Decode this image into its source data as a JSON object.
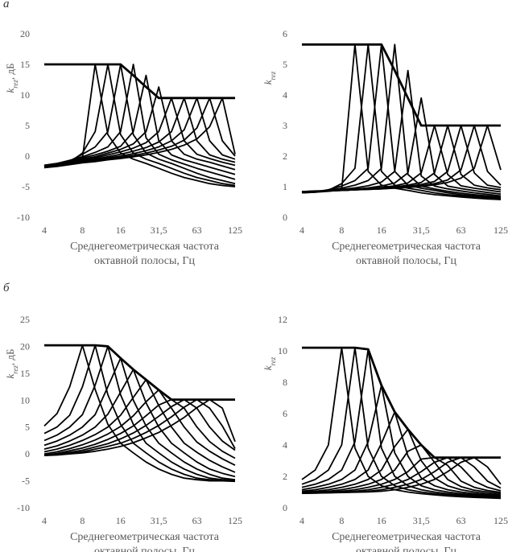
{
  "panels": {
    "a": "а",
    "b": "б"
  },
  "chart_data": [
    {
      "id": "a-left",
      "type": "line",
      "ylabel": "krez, дБ",
      "ylabel_main": "k",
      "ylabel_sub": "rez",
      "ylabel_unit": ", дБ",
      "xlabel_line1": "Среднегеометрическая частота",
      "xlabel_line2": "октавной полосы, Гц",
      "xtick_labels": [
        "4",
        "8",
        "16",
        "31,5",
        "63",
        "125"
      ],
      "xlim": [
        0,
        15
      ],
      "ylim": [
        -10,
        20
      ],
      "yticks": [
        -10,
        -5,
        0,
        5,
        10,
        15,
        20
      ],
      "ytick_labels": [
        "-10",
        "-5",
        "0",
        "5",
        "10",
        "15",
        "20"
      ],
      "envelope": [
        15,
        15,
        15,
        15,
        15,
        15,
        15,
        13.2,
        11.3,
        9.5,
        9.5,
        9.5,
        9.5,
        9.5,
        9.5,
        9.5
      ],
      "peaks": [
        3,
        4,
        5,
        6,
        7,
        8,
        9,
        10,
        11,
        12,
        13
      ],
      "curves": [
        [
          -1.8,
          -1.5,
          -1,
          -0.3,
          15,
          3.5,
          0.5,
          -0.5,
          -1.2,
          -2,
          -2.8,
          -3.5,
          -4,
          -4.5,
          -4.8,
          -5
        ],
        [
          -1.8,
          -1.5,
          -1,
          0.5,
          4,
          15,
          3.5,
          0.5,
          -0.5,
          -1.2,
          -2,
          -2.8,
          -3.5,
          -4,
          -4.5,
          -4.8
        ],
        [
          -1.6,
          -1.4,
          -0.8,
          0.3,
          1.5,
          4,
          15,
          3.5,
          0.5,
          -0.5,
          -1.2,
          -2,
          -2.8,
          -3.5,
          -4,
          -4.5
        ],
        [
          -1.5,
          -1.2,
          -0.7,
          -0.1,
          0.6,
          1.5,
          4,
          15,
          3,
          0.3,
          -0.6,
          -1.3,
          -2,
          -2.6,
          -3.2,
          -3.8
        ],
        [
          -1.5,
          -1.2,
          -0.8,
          -0.3,
          0.2,
          0.8,
          1.6,
          4,
          13.2,
          2.5,
          0.2,
          -0.6,
          -1.2,
          -1.8,
          -2.4,
          -3
        ],
        [
          -1.6,
          -1.3,
          -0.9,
          -0.5,
          -0.1,
          0.5,
          1.1,
          2,
          4,
          11.3,
          2.5,
          0.3,
          -0.5,
          -1,
          -1.6,
          -2.2
        ],
        [
          -1.6,
          -1.4,
          -1,
          -0.7,
          -0.3,
          0.2,
          0.7,
          1.3,
          2.2,
          4,
          9.5,
          2.5,
          0.3,
          -0.4,
          -1,
          -1.5
        ],
        [
          -1.7,
          -1.4,
          -1.1,
          -0.8,
          -0.5,
          -0.1,
          0.3,
          0.8,
          1.4,
          2.3,
          4,
          9.5,
          2.5,
          0.2,
          -0.5,
          -1
        ],
        [
          -1.8,
          -1.5,
          -1.2,
          -0.9,
          -0.6,
          -0.3,
          0,
          0.4,
          0.9,
          1.5,
          2.5,
          4.3,
          9.5,
          2.5,
          0.2,
          -0.5
        ],
        [
          -1.9,
          -1.6,
          -1.3,
          -1,
          -0.8,
          -0.5,
          -0.2,
          0.1,
          0.5,
          1,
          1.6,
          2.6,
          4.6,
          9.5,
          2.5,
          0
        ],
        [
          -1.9,
          -1.7,
          -1.4,
          -1.1,
          -0.9,
          -0.6,
          -0.4,
          -0.1,
          0.2,
          0.6,
          1.1,
          1.8,
          2.8,
          4.8,
          9.5,
          0.3
        ]
      ]
    },
    {
      "id": "a-right",
      "type": "line",
      "ylabel": "krez",
      "ylabel_main": "k",
      "ylabel_sub": "rez",
      "ylabel_unit": "",
      "xlabel_line1": "Среднегеометрическая частота",
      "xlabel_line2": "октавной полосы, Гц",
      "xtick_labels": [
        "4",
        "8",
        "16",
        "31,5",
        "63",
        "125"
      ],
      "xlim": [
        0,
        15
      ],
      "ylim": [
        0,
        6
      ],
      "yticks": [
        0,
        1,
        2,
        3,
        4,
        5,
        6
      ],
      "ytick_labels": [
        "0",
        "1",
        "2",
        "3",
        "4",
        "5",
        "6"
      ],
      "envelope": [
        5.65,
        5.65,
        5.65,
        5.65,
        5.65,
        5.65,
        5.65,
        4.8,
        3.9,
        3,
        3,
        3,
        3,
        3,
        3,
        3
      ],
      "peaks": [
        3,
        4,
        5,
        6,
        7,
        8,
        9,
        10,
        11,
        12,
        13
      ],
      "curves": [
        [
          0.8,
          0.82,
          0.85,
          0.9,
          5.65,
          1.5,
          1.05,
          0.95,
          0.88,
          0.8,
          0.74,
          0.7,
          0.66,
          0.63,
          0.6,
          0.58
        ],
        [
          0.8,
          0.82,
          0.88,
          1.1,
          1.6,
          5.65,
          1.5,
          1.05,
          0.95,
          0.88,
          0.8,
          0.74,
          0.7,
          0.66,
          0.63,
          0.6
        ],
        [
          0.8,
          0.83,
          0.9,
          1.02,
          1.2,
          1.6,
          5.65,
          1.5,
          1.05,
          0.95,
          0.88,
          0.8,
          0.74,
          0.7,
          0.66,
          0.63
        ],
        [
          0.8,
          0.83,
          0.88,
          0.95,
          1.05,
          1.2,
          1.6,
          5.65,
          1.4,
          1.02,
          0.93,
          0.85,
          0.79,
          0.74,
          0.7,
          0.66
        ],
        [
          0.82,
          0.84,
          0.87,
          0.91,
          0.96,
          1.03,
          1.15,
          1.5,
          4.8,
          1.35,
          1.02,
          0.93,
          0.86,
          0.8,
          0.75,
          0.7
        ],
        [
          0.82,
          0.84,
          0.86,
          0.89,
          0.92,
          0.96,
          1.02,
          1.12,
          1.45,
          3.9,
          1.4,
          1.02,
          0.94,
          0.87,
          0.81,
          0.76
        ],
        [
          0.83,
          0.84,
          0.86,
          0.88,
          0.9,
          0.93,
          0.97,
          1.03,
          1.12,
          1.45,
          3,
          1.4,
          1.03,
          0.95,
          0.89,
          0.83
        ],
        [
          0.83,
          0.85,
          0.86,
          0.88,
          0.9,
          0.92,
          0.95,
          0.99,
          1.05,
          1.14,
          1.45,
          3,
          1.4,
          1.05,
          0.96,
          0.9
        ],
        [
          0.84,
          0.85,
          0.87,
          0.88,
          0.9,
          0.92,
          0.94,
          0.97,
          1.01,
          1.07,
          1.17,
          1.5,
          3,
          1.45,
          1.05,
          0.97
        ],
        [
          0.84,
          0.85,
          0.87,
          0.88,
          0.9,
          0.91,
          0.93,
          0.96,
          0.99,
          1.03,
          1.1,
          1.22,
          1.55,
          3,
          1.5,
          1.05
        ],
        [
          0.84,
          0.86,
          0.87,
          0.88,
          0.9,
          0.91,
          0.93,
          0.95,
          0.97,
          1.01,
          1.06,
          1.14,
          1.28,
          1.6,
          3,
          1.55
        ]
      ]
    },
    {
      "id": "b-left",
      "type": "line",
      "ylabel": "krez, дБ",
      "ylabel_main": "k",
      "ylabel_sub": "rez",
      "ylabel_unit": ", дБ",
      "xlabel_line1": "Среднегеометрическая частота",
      "xlabel_line2": "октавной полосы, Гц",
      "xtick_labels": [
        "4",
        "8",
        "16",
        "31,5",
        "63",
        "125"
      ],
      "xlim": [
        0,
        15
      ],
      "ylim": [
        -10,
        25
      ],
      "yticks": [
        -10,
        -5,
        0,
        5,
        10,
        15,
        20,
        25
      ],
      "ytick_labels": [
        "-10",
        "-5",
        "0",
        "5",
        "10",
        "15",
        "20",
        "25"
      ],
      "envelope": [
        20.2,
        20.2,
        20.2,
        20.2,
        20.2,
        20,
        17.8,
        15.7,
        13.8,
        11.9,
        10.1,
        10.1,
        10.1,
        10.1,
        10.1,
        10.1
      ],
      "peaks": [
        3,
        4,
        5,
        6,
        7,
        8,
        9,
        10,
        11,
        12,
        13
      ],
      "curves": [
        [
          5.2,
          7.5,
          12.5,
          20.2,
          12,
          5.5,
          2,
          0.2,
          -1.5,
          -2.8,
          -3.8,
          -4.5,
          -4.8,
          -5,
          -5,
          -5.1
        ],
        [
          3.8,
          5,
          7.2,
          12.5,
          20.2,
          11,
          5.5,
          2,
          0.2,
          -1.5,
          -2.8,
          -3.8,
          -4.5,
          -4.8,
          -5,
          -5
        ],
        [
          2.5,
          3.5,
          5,
          7.3,
          12.8,
          20,
          11,
          5.5,
          2,
          0.2,
          -1.5,
          -2.8,
          -3.8,
          -4.5,
          -4.8,
          -5
        ],
        [
          1.6,
          2.4,
          3.5,
          5,
          7.3,
          12.5,
          17.8,
          10,
          5.2,
          2,
          0.2,
          -1.5,
          -2.8,
          -3.8,
          -4.5,
          -4.8
        ],
        [
          0.9,
          1.5,
          2.4,
          3.5,
          5,
          7.4,
          11.5,
          15.7,
          9.5,
          5,
          2,
          0.2,
          -1.5,
          -2.8,
          -3.6,
          -4.2
        ],
        [
          0.4,
          0.9,
          1.6,
          2.5,
          3.6,
          5,
          7.2,
          10.5,
          13.8,
          9,
          5,
          2,
          0.3,
          -1.2,
          -2.4,
          -3.4
        ],
        [
          0,
          0.4,
          1,
          1.7,
          2.6,
          3.7,
          5.1,
          7.1,
          9.7,
          11.9,
          8.5,
          5,
          2.2,
          0.5,
          -0.9,
          -2.1
        ],
        [
          -0.2,
          0.1,
          0.6,
          1.1,
          1.8,
          2.7,
          3.8,
          5.2,
          7.1,
          9.1,
          10.1,
          8.5,
          5,
          2.3,
          0.5,
          -0.8
        ],
        [
          -0.3,
          0,
          0.3,
          0.7,
          1.3,
          1.9,
          2.8,
          3.9,
          5.3,
          7,
          8.8,
          10.1,
          8.5,
          5,
          2.4,
          0.7
        ],
        [
          -0.3,
          -0.1,
          0.1,
          0.4,
          0.9,
          1.4,
          2,
          2.9,
          4,
          5.3,
          6.9,
          8.7,
          10.1,
          8.5,
          5.2,
          1
        ],
        [
          -0.3,
          -0.2,
          0,
          0.2,
          0.5,
          0.9,
          1.4,
          2.1,
          3,
          4,
          5.3,
          6.8,
          8.6,
          10.1,
          8.5,
          2.3
        ]
      ]
    },
    {
      "id": "b-right",
      "type": "line",
      "ylabel": "krez",
      "ylabel_main": "k",
      "ylabel_sub": "rez",
      "ylabel_unit": "",
      "xlabel_line1": "Среднегеометрическая частота",
      "xlabel_line2": "октавной полосы, Гц",
      "xtick_labels": [
        "4",
        "8",
        "16",
        "31,5",
        "63",
        "125"
      ],
      "xlim": [
        0,
        15
      ],
      "ylim": [
        0,
        12
      ],
      "yticks": [
        0,
        2,
        4,
        6,
        8,
        10,
        12
      ],
      "ytick_labels": [
        "0",
        "2",
        "4",
        "6",
        "8",
        "10",
        "12"
      ],
      "envelope": [
        10.2,
        10.2,
        10.2,
        10.2,
        10.2,
        10.1,
        7.8,
        6.1,
        5,
        4,
        3.2,
        3.2,
        3.2,
        3.2,
        3.2,
        3.2
      ],
      "peaks": [
        3,
        4,
        5,
        6,
        7,
        8,
        9,
        10,
        11,
        12,
        13
      ],
      "curves": [
        [
          1.8,
          2.4,
          4,
          10.2,
          3.8,
          2,
          1.4,
          1.15,
          1,
          0.9,
          0.82,
          0.75,
          0.7,
          0.66,
          0.63,
          0.6
        ],
        [
          1.5,
          1.8,
          2.4,
          4,
          10.2,
          3.8,
          2,
          1.4,
          1.15,
          1,
          0.9,
          0.82,
          0.75,
          0.7,
          0.66,
          0.63
        ],
        [
          1.3,
          1.5,
          1.8,
          2.4,
          4.2,
          10.1,
          3.8,
          2,
          1.4,
          1.15,
          1,
          0.9,
          0.82,
          0.75,
          0.7,
          0.66
        ],
        [
          1.15,
          1.3,
          1.5,
          1.8,
          2.4,
          4.2,
          7.8,
          3.5,
          2,
          1.4,
          1.15,
          1,
          0.9,
          0.82,
          0.75,
          0.7
        ],
        [
          1.05,
          1.15,
          1.3,
          1.5,
          1.8,
          2.4,
          4.1,
          6.1,
          3.3,
          1.9,
          1.4,
          1.15,
          1,
          0.9,
          0.82,
          0.75
        ],
        [
          1,
          1.05,
          1.15,
          1.3,
          1.5,
          1.8,
          2.4,
          3.9,
          5,
          3,
          1.9,
          1.4,
          1.15,
          1,
          0.9,
          0.82
        ],
        [
          0.95,
          1,
          1.05,
          1.15,
          1.3,
          1.5,
          1.8,
          2.4,
          3.6,
          4,
          2.9,
          1.8,
          1.35,
          1.12,
          1,
          0.9
        ],
        [
          0.93,
          0.97,
          1,
          1.05,
          1.15,
          1.3,
          1.5,
          1.8,
          2.3,
          3.1,
          3.2,
          2.7,
          1.7,
          1.3,
          1.1,
          0.98
        ],
        [
          0.92,
          0.95,
          0.98,
          1,
          1.05,
          1.15,
          1.3,
          1.5,
          1.8,
          2.3,
          2.9,
          3.2,
          2.6,
          1.7,
          1.3,
          1.08
        ],
        [
          0.92,
          0.94,
          0.96,
          0.98,
          1,
          1.05,
          1.15,
          1.3,
          1.5,
          1.8,
          2.3,
          2.9,
          3.2,
          2.6,
          1.7,
          1.25
        ],
        [
          0.92,
          0.93,
          0.95,
          0.97,
          0.99,
          1.01,
          1.05,
          1.15,
          1.3,
          1.5,
          1.8,
          2.3,
          2.9,
          3.2,
          2.6,
          1.5
        ]
      ]
    }
  ]
}
